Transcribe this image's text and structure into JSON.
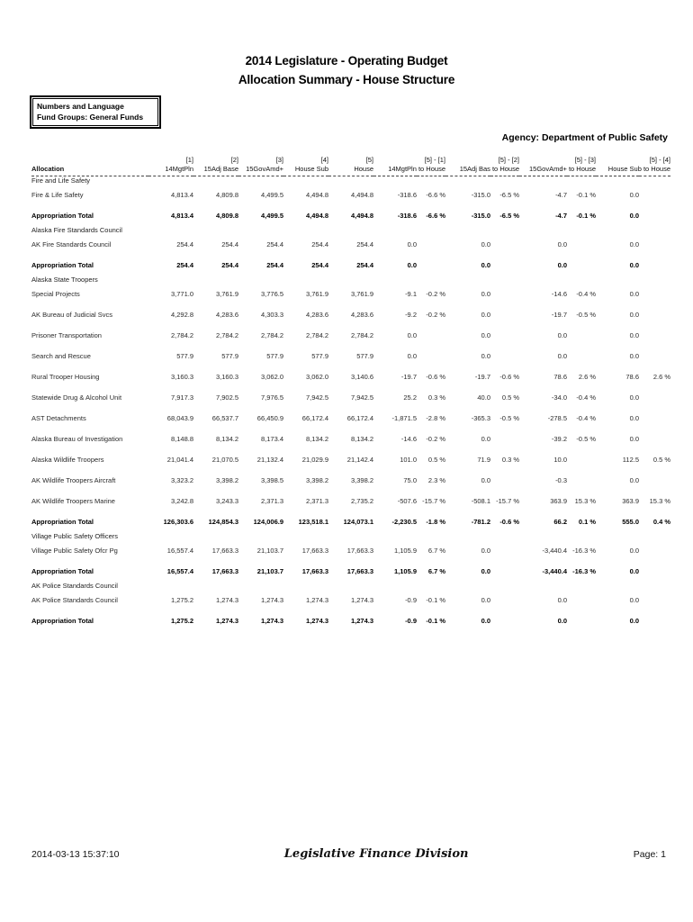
{
  "header": {
    "title": "2014 Legislature - Operating Budget",
    "subtitle": "Allocation Summary - House Structure",
    "filter_line1": "Numbers and Language",
    "filter_line2": "Fund Groups: General Funds",
    "agency": "Agency: Department of Public Safety"
  },
  "table": {
    "allocation_header": "Allocation",
    "columns": [
      {
        "num": "[1]",
        "label": "14MgtPln"
      },
      {
        "num": "[2]",
        "label": "15Adj Base"
      },
      {
        "num": "[3]",
        "label": "15GovAmd+"
      },
      {
        "num": "[4]",
        "label": "House Sub"
      },
      {
        "num": "[5]",
        "label": "House"
      }
    ],
    "diff_columns": [
      {
        "num": "[5] - [1]",
        "label": "14MgtPln to  House"
      },
      {
        "num": "[5] - [2]",
        "label": "15Adj Bas to  House"
      },
      {
        "num": "[5] - [3]",
        "label": "15GovAmd+ to  House"
      },
      {
        "num": "[5] - [4]",
        "label": "House Sub to  House"
      }
    ],
    "total_label": "Appropriation Total",
    "sections": [
      {
        "name": "Fire and Life Safety",
        "rows": [
          {
            "label": "Fire & Life Safety",
            "cols": [
              "4,813.4",
              "4,809.8",
              "4,499.5",
              "4,494.8",
              "4,494.8"
            ],
            "diffs": [
              "-318.6",
              "-6.6 %",
              "-315.0",
              "-6.5 %",
              "-4.7",
              "-0.1 %",
              "0.0",
              ""
            ]
          }
        ],
        "total": {
          "cols": [
            "4,813.4",
            "4,809.8",
            "4,499.5",
            "4,494.8",
            "4,494.8"
          ],
          "diffs": [
            "-318.6",
            "-6.6 %",
            "-315.0",
            "-6.5 %",
            "-4.7",
            "-0.1 %",
            "0.0",
            ""
          ]
        }
      },
      {
        "name": "Alaska Fire Standards Council",
        "rows": [
          {
            "label": "AK Fire Standards Council",
            "cols": [
              "254.4",
              "254.4",
              "254.4",
              "254.4",
              "254.4"
            ],
            "diffs": [
              "0.0",
              "",
              "0.0",
              "",
              "0.0",
              "",
              "0.0",
              ""
            ]
          }
        ],
        "total": {
          "cols": [
            "254.4",
            "254.4",
            "254.4",
            "254.4",
            "254.4"
          ],
          "diffs": [
            "0.0",
            "",
            "0.0",
            "",
            "0.0",
            "",
            "0.0",
            ""
          ]
        }
      },
      {
        "name": "Alaska State Troopers",
        "rows": [
          {
            "label": "Special Projects",
            "cols": [
              "3,771.0",
              "3,761.9",
              "3,776.5",
              "3,761.9",
              "3,761.9"
            ],
            "diffs": [
              "-9.1",
              "-0.2 %",
              "0.0",
              "",
              "-14.6",
              "-0.4 %",
              "0.0",
              ""
            ]
          },
          {
            "label": "AK Bureau of Judicial Svcs",
            "cols": [
              "4,292.8",
              "4,283.6",
              "4,303.3",
              "4,283.6",
              "4,283.6"
            ],
            "diffs": [
              "-9.2",
              "-0.2 %",
              "0.0",
              "",
              "-19.7",
              "-0.5 %",
              "0.0",
              ""
            ]
          },
          {
            "label": "Prisoner Transportation",
            "cols": [
              "2,784.2",
              "2,784.2",
              "2,784.2",
              "2,784.2",
              "2,784.2"
            ],
            "diffs": [
              "0.0",
              "",
              "0.0",
              "",
              "0.0",
              "",
              "0.0",
              ""
            ]
          },
          {
            "label": "Search and Rescue",
            "cols": [
              "577.9",
              "577.9",
              "577.9",
              "577.9",
              "577.9"
            ],
            "diffs": [
              "0.0",
              "",
              "0.0",
              "",
              "0.0",
              "",
              "0.0",
              ""
            ]
          },
          {
            "label": "Rural Trooper Housing",
            "cols": [
              "3,160.3",
              "3,160.3",
              "3,062.0",
              "3,062.0",
              "3,140.6"
            ],
            "diffs": [
              "-19.7",
              "-0.6 %",
              "-19.7",
              "-0.6 %",
              "78.6",
              "2.6 %",
              "78.6",
              "2.6 %"
            ]
          },
          {
            "label": "Statewide Drug & Alcohol Unit",
            "cols": [
              "7,917.3",
              "7,902.5",
              "7,976.5",
              "7,942.5",
              "7,942.5"
            ],
            "diffs": [
              "25.2",
              "0.3 %",
              "40.0",
              "0.5 %",
              "-34.0",
              "-0.4 %",
              "0.0",
              ""
            ]
          },
          {
            "label": "AST Detachments",
            "cols": [
              "68,043.9",
              "66,537.7",
              "66,450.9",
              "66,172.4",
              "66,172.4"
            ],
            "diffs": [
              "-1,871.5",
              "-2.8 %",
              "-365.3",
              "-0.5 %",
              "-278.5",
              "-0.4 %",
              "0.0",
              ""
            ]
          },
          {
            "label": "Alaska Bureau of Investigation",
            "cols": [
              "8,148.8",
              "8,134.2",
              "8,173.4",
              "8,134.2",
              "8,134.2"
            ],
            "diffs": [
              "-14.6",
              "-0.2 %",
              "0.0",
              "",
              "-39.2",
              "-0.5 %",
              "0.0",
              ""
            ]
          },
          {
            "label": "Alaska Wildlife Troopers",
            "cols": [
              "21,041.4",
              "21,070.5",
              "21,132.4",
              "21,029.9",
              "21,142.4"
            ],
            "diffs": [
              "101.0",
              "0.5 %",
              "71.9",
              "0.3 %",
              "10.0",
              "",
              "112.5",
              "0.5 %"
            ]
          },
          {
            "label": "AK Wildlife Troopers Aircraft",
            "cols": [
              "3,323.2",
              "3,398.2",
              "3,398.5",
              "3,398.2",
              "3,398.2"
            ],
            "diffs": [
              "75.0",
              "2.3 %",
              "0.0",
              "",
              "-0.3",
              "",
              "0.0",
              ""
            ]
          },
          {
            "label": "AK Wildlife Troopers Marine",
            "cols": [
              "3,242.8",
              "3,243.3",
              "2,371.3",
              "2,371.3",
              "2,735.2"
            ],
            "diffs": [
              "-507.6",
              "-15.7 %",
              "-508.1",
              "-15.7 %",
              "363.9",
              "15.3 %",
              "363.9",
              "15.3 %"
            ]
          }
        ],
        "total": {
          "cols": [
            "126,303.6",
            "124,854.3",
            "124,006.9",
            "123,518.1",
            "124,073.1"
          ],
          "diffs": [
            "-2,230.5",
            "-1.8 %",
            "-781.2",
            "-0.6 %",
            "66.2",
            "0.1 %",
            "555.0",
            "0.4 %"
          ]
        }
      },
      {
        "name": "Village Public Safety Officers",
        "rows": [
          {
            "label": "Village Public Safety Ofcr Pg",
            "cols": [
              "16,557.4",
              "17,663.3",
              "21,103.7",
              "17,663.3",
              "17,663.3"
            ],
            "diffs": [
              "1,105.9",
              "6.7 %",
              "0.0",
              "",
              "-3,440.4",
              "-16.3 %",
              "0.0",
              ""
            ]
          }
        ],
        "total": {
          "cols": [
            "16,557.4",
            "17,663.3",
            "21,103.7",
            "17,663.3",
            "17,663.3"
          ],
          "diffs": [
            "1,105.9",
            "6.7 %",
            "0.0",
            "",
            "-3,440.4",
            "-16.3 %",
            "0.0",
            ""
          ]
        }
      },
      {
        "name": "AK Police Standards Council",
        "rows": [
          {
            "label": "AK Police Standards Council",
            "cols": [
              "1,275.2",
              "1,274.3",
              "1,274.3",
              "1,274.3",
              "1,274.3"
            ],
            "diffs": [
              "-0.9",
              "-0.1 %",
              "0.0",
              "",
              "0.0",
              "",
              "0.0",
              ""
            ]
          }
        ],
        "total": {
          "cols": [
            "1,275.2",
            "1,274.3",
            "1,274.3",
            "1,274.3",
            "1,274.3"
          ],
          "diffs": [
            "-0.9",
            "-0.1 %",
            "0.0",
            "",
            "0.0",
            "",
            "0.0",
            ""
          ]
        }
      }
    ]
  },
  "footer": {
    "timestamp": "2014-03-13 15:37:10",
    "center": "Legislative Finance Division",
    "page": "Page: 1"
  }
}
